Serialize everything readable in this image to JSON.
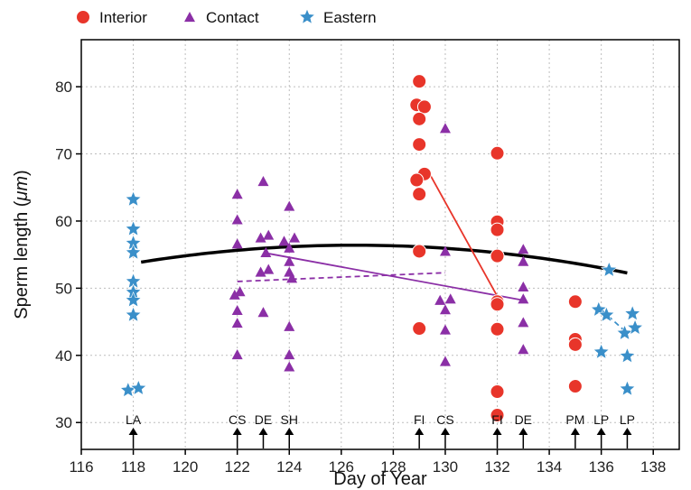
{
  "chart_data": {
    "type": "scatter",
    "title": "",
    "xlabel": "Day of Year",
    "ylabel_prefix": "Sperm length (",
    "ylabel_unit": "μm",
    "ylabel_suffix": ")",
    "xlim": [
      116,
      139
    ],
    "ylim": [
      26,
      87
    ],
    "x_ticks": [
      116,
      118,
      120,
      122,
      124,
      126,
      128,
      130,
      132,
      134,
      136,
      138
    ],
    "y_ticks": [
      30,
      40,
      50,
      60,
      70,
      80
    ],
    "grid": true,
    "legend_position": "top",
    "series": [
      {
        "name": "Interior",
        "marker": "circle",
        "color": "#e8352a",
        "points": [
          [
            129,
            80.8
          ],
          [
            128.9,
            77.3
          ],
          [
            129.2,
            77.0
          ],
          [
            129,
            75.2
          ],
          [
            129,
            71.4
          ],
          [
            129.2,
            67.0
          ],
          [
            128.9,
            66.1
          ],
          [
            129,
            64.0
          ],
          [
            129,
            55.5
          ],
          [
            129,
            44.0
          ],
          [
            132,
            70.1
          ],
          [
            132,
            59.9
          ],
          [
            132,
            58.7
          ],
          [
            132,
            54.8
          ],
          [
            132,
            48.0
          ],
          [
            132,
            47.6
          ],
          [
            132,
            43.9
          ],
          [
            132,
            34.6
          ],
          [
            132,
            31.1
          ],
          [
            135,
            48.0
          ],
          [
            135,
            42.4
          ],
          [
            135,
            41.6
          ],
          [
            135,
            35.4
          ]
        ]
      },
      {
        "name": "Contact",
        "marker": "triangle",
        "color": "#8b2fa6",
        "points": [
          [
            122,
            64.0
          ],
          [
            122,
            60.2
          ],
          [
            122,
            56.6
          ],
          [
            121.9,
            49.0
          ],
          [
            122.1,
            49.5
          ],
          [
            122,
            46.7
          ],
          [
            122,
            44.8
          ],
          [
            122,
            40.1
          ],
          [
            123,
            65.9
          ],
          [
            122.9,
            57.5
          ],
          [
            123.2,
            57.9
          ],
          [
            123.1,
            55.3
          ],
          [
            123.2,
            52.8
          ],
          [
            122.9,
            52.4
          ],
          [
            123,
            46.4
          ],
          [
            124,
            62.2
          ],
          [
            123.8,
            57.0
          ],
          [
            124.2,
            57.5
          ],
          [
            124,
            56.0
          ],
          [
            124,
            54.0
          ],
          [
            124,
            52.4
          ],
          [
            124.1,
            51.5
          ],
          [
            124,
            44.3
          ],
          [
            124,
            40.1
          ],
          [
            124,
            38.3
          ],
          [
            130,
            73.8
          ],
          [
            130,
            55.5
          ],
          [
            129.8,
            48.2
          ],
          [
            130.2,
            48.4
          ],
          [
            130,
            46.8
          ],
          [
            130,
            43.8
          ],
          [
            130,
            39.1
          ],
          [
            133,
            55.8
          ],
          [
            133,
            54.0
          ],
          [
            133,
            50.2
          ],
          [
            133,
            48.4
          ],
          [
            133,
            44.9
          ],
          [
            133,
            40.9
          ]
        ]
      },
      {
        "name": "Eastern",
        "marker": "star",
        "color": "#3a8fc9",
        "points": [
          [
            118,
            63.2
          ],
          [
            118,
            58.8
          ],
          [
            118,
            56.7
          ],
          [
            118,
            55.3
          ],
          [
            118,
            51.0
          ],
          [
            118,
            49.4
          ],
          [
            118,
            48.2
          ],
          [
            118,
            46.0
          ],
          [
            117.8,
            34.8
          ],
          [
            118.2,
            35.1
          ],
          [
            136.3,
            52.7
          ],
          [
            135.9,
            46.8
          ],
          [
            136.2,
            46.0
          ],
          [
            136,
            40.5
          ],
          [
            137.2,
            46.2
          ],
          [
            136.9,
            43.3
          ],
          [
            137.3,
            44.1
          ],
          [
            137,
            39.9
          ],
          [
            137,
            35.0
          ]
        ]
      }
    ],
    "fits": [
      {
        "kind": "quadratic",
        "color": "#000000",
        "style": "solid",
        "coefficients": [
          -0.0375,
          9.4875,
          -543.68
        ],
        "x_range": [
          118.3,
          137
        ]
      },
      {
        "kind": "line",
        "color": "#8b2fa6",
        "style": "dashed",
        "points": [
          [
            122,
            51.0
          ],
          [
            130,
            52.3
          ]
        ]
      },
      {
        "kind": "line",
        "color": "#8b2fa6",
        "style": "solid",
        "points": [
          [
            123,
            55.3
          ],
          [
            133,
            48.2
          ]
        ]
      },
      {
        "kind": "line",
        "color": "#e8352a",
        "style": "solid",
        "points": [
          [
            129.4,
            67.0
          ],
          [
            132,
            48.8
          ]
        ]
      },
      {
        "kind": "line",
        "color": "#3a8fc9",
        "style": "dashed",
        "points": [
          [
            136,
            46.8
          ],
          [
            137,
            43.3
          ]
        ]
      }
    ],
    "site_markers": [
      {
        "label": "LA",
        "x": 118
      },
      {
        "label": "CS",
        "x": 122
      },
      {
        "label": "DE",
        "x": 123
      },
      {
        "label": "SH",
        "x": 124
      },
      {
        "label": "FI",
        "x": 129
      },
      {
        "label": "CS",
        "x": 130
      },
      {
        "label": "FI",
        "x": 132
      },
      {
        "label": "DE",
        "x": 133
      },
      {
        "label": "PM",
        "x": 135
      },
      {
        "label": "LP",
        "x": 136
      },
      {
        "label": "LP",
        "x": 137
      }
    ]
  }
}
